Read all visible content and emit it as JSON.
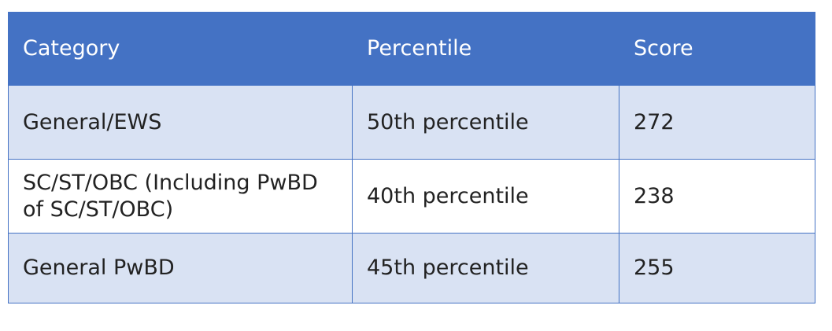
{
  "table": {
    "header": [
      "Category",
      "Percentile",
      "Score"
    ],
    "rows": [
      [
        "General/EWS",
        "50th percentile",
        272
      ],
      [
        "SC/ST/OBC (Including PwBD of SC/ST/OBC)",
        "40th percentile",
        238
      ],
      [
        "General PwBD",
        "45th percentile",
        255
      ]
    ]
  }
}
